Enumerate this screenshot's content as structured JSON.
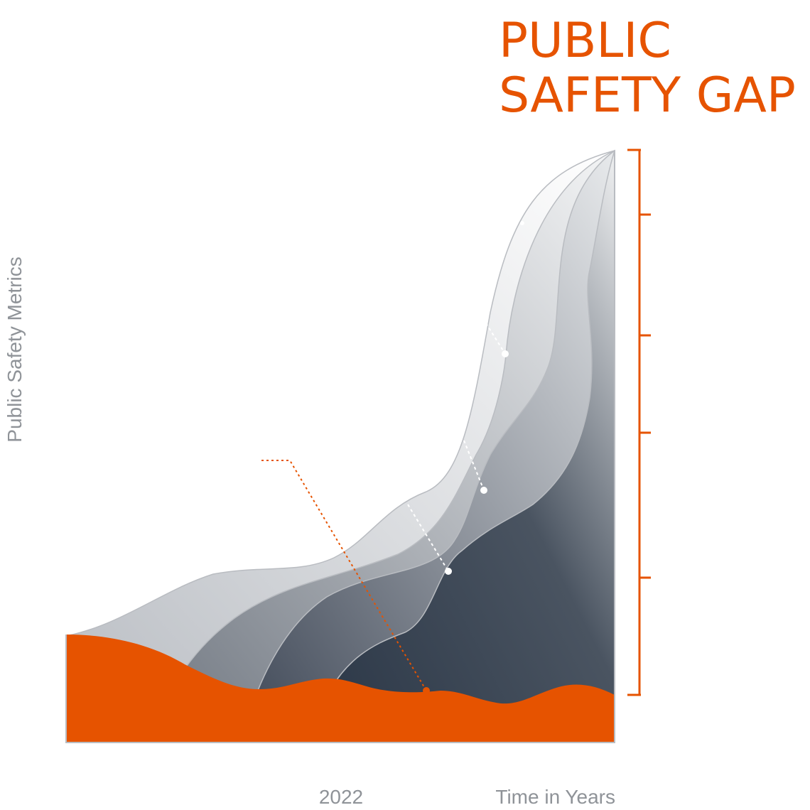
{
  "chart_data": {
    "type": "area",
    "title": [
      "PUBLIC",
      "SAFETY GAP"
    ],
    "xlabel": "Time in Years",
    "ylabel": "Public Safety Metrics",
    "x_tick_labels": [
      "2022"
    ],
    "y_scale_ticks": 6,
    "grid": false,
    "legend": "none",
    "series": [
      {
        "role": "gray-layer-1",
        "fill": "#c4c7cc"
      },
      {
        "role": "gray-layer-2",
        "fill": "#8e949b"
      },
      {
        "role": "gray-layer-3",
        "fill": "#5d6670"
      },
      {
        "role": "gray-layer-4",
        "fill": "#34404e"
      },
      {
        "role": "orange-baseline",
        "fill": "#e65300"
      }
    ],
    "annotations": {
      "white_dots": 3,
      "orange_dots": 1
    }
  },
  "colors": {
    "accent": "#e65300",
    "axis_text": "#8f9398",
    "layer_stroke": "#b9bcc1"
  }
}
